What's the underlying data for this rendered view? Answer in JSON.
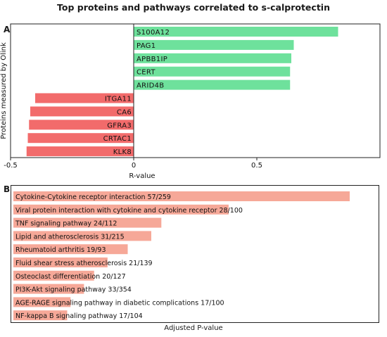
{
  "title": "Top proteins and pathways correlated to s-calprotectin",
  "panels": {
    "a": "A",
    "b": "B"
  },
  "chart_data": [
    {
      "type": "bar",
      "orientation": "horizontal",
      "ylabel": "Proteins measured by Olink",
      "xlabel": "R-value",
      "xlim": [
        -0.5,
        1.0
      ],
      "xticks": [
        "-0.5",
        "0",
        "0.5"
      ],
      "categories": [
        "S100A12",
        "PAG1",
        "APBB1IP",
        "CERT",
        "ARID4B",
        "ITGA11",
        "CA6",
        "GFRA3",
        "CRTAC1",
        "KLK8"
      ],
      "values": [
        0.83,
        0.65,
        0.64,
        0.635,
        0.635,
        -0.4,
        -0.42,
        -0.425,
        -0.43,
        -0.435
      ],
      "colors": {
        "positive": "#6ee19c",
        "negative": "#f26b6b"
      }
    },
    {
      "type": "bar",
      "orientation": "horizontal",
      "xlabel": "Adjusted P-value",
      "categories": [
        "Cytokine-Cytokine receptor interaction 57/259",
        "Viral protein interaction with cytokine and cytokine receptor 28/100",
        "TNF signaling pathway 24/112",
        "Lipid and atherosclerosis 31/215",
        "Rheumatoid arthritis 19/93",
        "Fluid shear stress atherosclerosis 21/139",
        "Osteoclast differentiation 20/127",
        "PI3K-Akt signaling pathway 33/354",
        "AGE-RAGE signaling pathway in diabetic complications 17/100",
        "NF-kappa B signaling pathway 17/104"
      ],
      "values": [
        1.0,
        0.64,
        0.44,
        0.41,
        0.34,
        0.28,
        0.24,
        0.21,
        0.17,
        0.16
      ],
      "colors": {
        "bar": "#f6a898"
      }
    }
  ]
}
